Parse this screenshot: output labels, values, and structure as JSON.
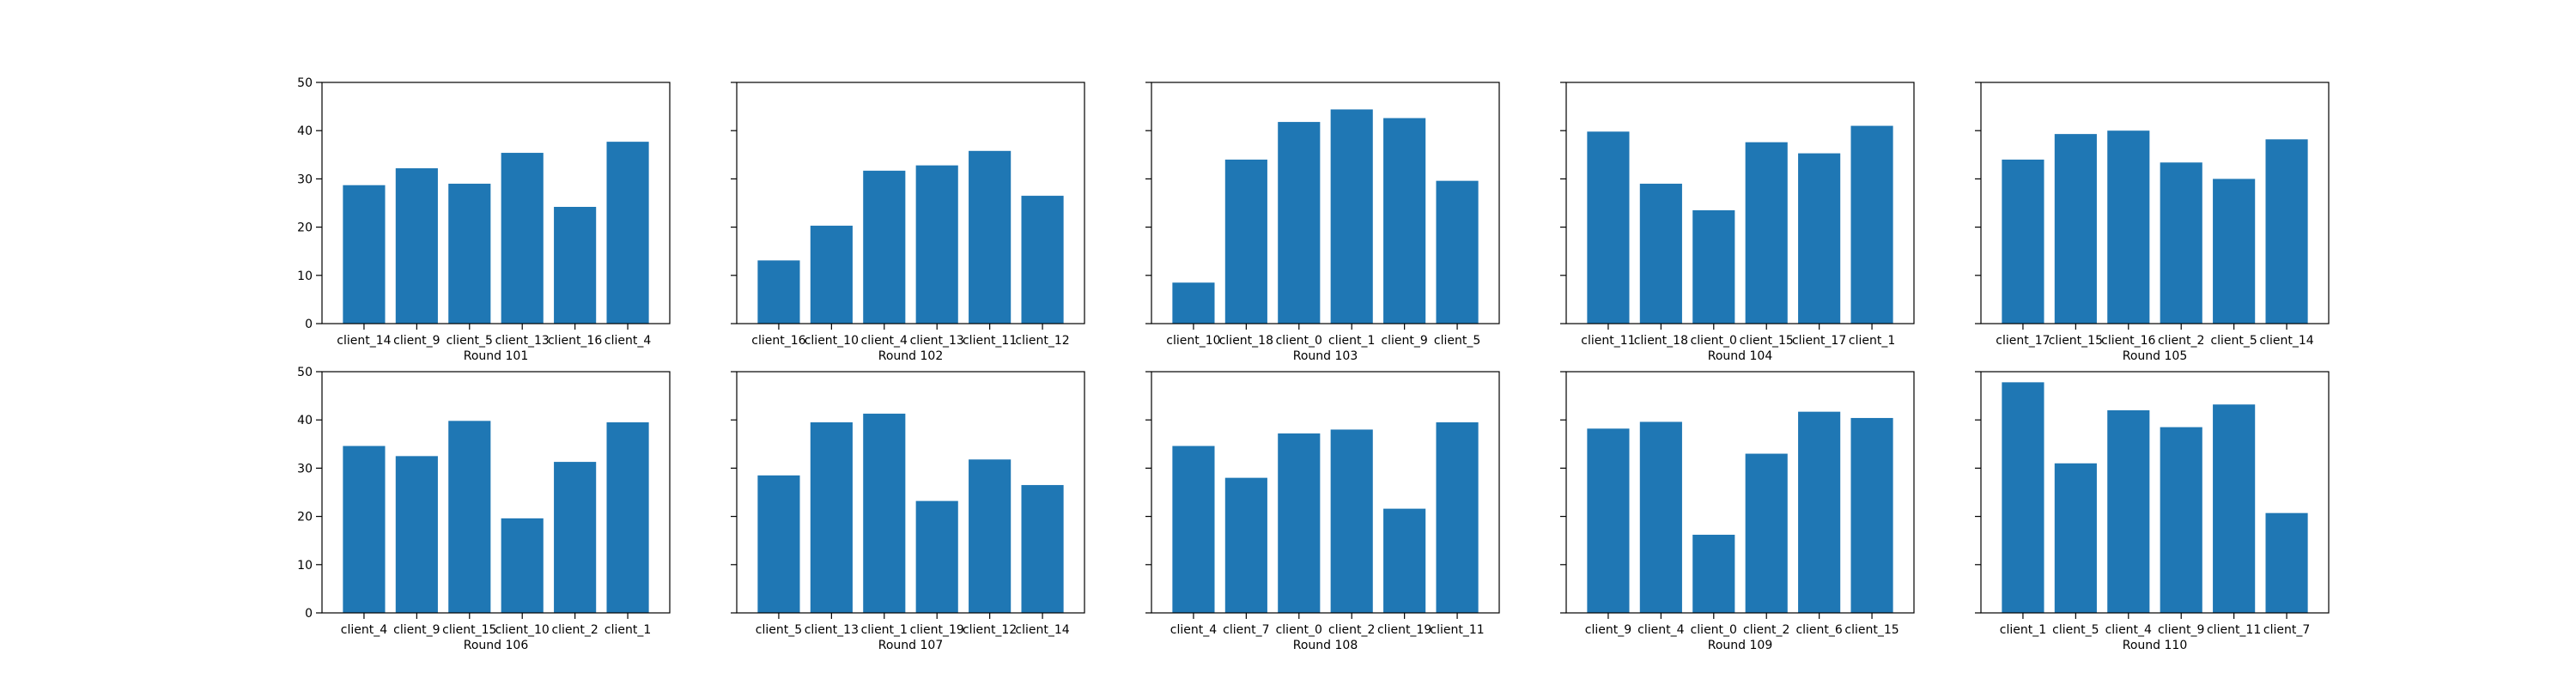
{
  "colors": {
    "bar": "#1f77b4",
    "axis": "#000000",
    "background": "#ffffff"
  },
  "chart_data": [
    {
      "type": "bar",
      "xlabel": "Round 101",
      "categories": [
        "client_14",
        "client_9",
        "client_5",
        "client_13",
        "client_16",
        "client_4"
      ],
      "values": [
        28.7,
        32.2,
        29.0,
        35.4,
        24.2,
        37.7
      ],
      "ylim": [
        0,
        50
      ],
      "yticks": [
        0,
        10,
        20,
        30,
        40,
        50
      ],
      "grid": false
    },
    {
      "type": "bar",
      "xlabel": "Round 102",
      "categories": [
        "client_16",
        "client_10",
        "client_4",
        "client_13",
        "client_11",
        "client_12"
      ],
      "values": [
        13.1,
        20.3,
        31.7,
        32.8,
        35.8,
        26.5
      ],
      "ylim": [
        0,
        50
      ],
      "yticks": [
        0,
        10,
        20,
        30,
        40,
        50
      ],
      "grid": false
    },
    {
      "type": "bar",
      "xlabel": "Round 103",
      "categories": [
        "client_10",
        "client_18",
        "client_0",
        "client_1",
        "client_9",
        "client_5"
      ],
      "values": [
        8.5,
        34.0,
        41.8,
        44.4,
        42.6,
        29.6
      ],
      "ylim": [
        0,
        50
      ],
      "yticks": [
        0,
        10,
        20,
        30,
        40,
        50
      ],
      "grid": false
    },
    {
      "type": "bar",
      "xlabel": "Round 104",
      "categories": [
        "client_11",
        "client_18",
        "client_0",
        "client_15",
        "client_17",
        "client_1"
      ],
      "values": [
        39.8,
        29.0,
        23.5,
        37.6,
        35.3,
        41.0
      ],
      "ylim": [
        0,
        50
      ],
      "yticks": [
        0,
        10,
        20,
        30,
        40,
        50
      ],
      "grid": false
    },
    {
      "type": "bar",
      "xlabel": "Round 105",
      "categories": [
        "client_17",
        "client_15",
        "client_16",
        "client_2",
        "client_5",
        "client_14"
      ],
      "values": [
        34.0,
        39.3,
        40.0,
        33.4,
        30.0,
        38.2
      ],
      "ylim": [
        0,
        50
      ],
      "yticks": [
        0,
        10,
        20,
        30,
        40,
        50
      ],
      "grid": false
    },
    {
      "type": "bar",
      "xlabel": "Round 106",
      "categories": [
        "client_4",
        "client_9",
        "client_15",
        "client_10",
        "client_2",
        "client_1"
      ],
      "values": [
        34.6,
        32.5,
        39.8,
        19.6,
        31.3,
        39.5
      ],
      "ylim": [
        0,
        50
      ],
      "yticks": [
        0,
        10,
        20,
        30,
        40,
        50
      ],
      "grid": false
    },
    {
      "type": "bar",
      "xlabel": "Round 107",
      "categories": [
        "client_5",
        "client_13",
        "client_1",
        "client_19",
        "client_12",
        "client_14"
      ],
      "values": [
        28.5,
        39.5,
        41.3,
        23.2,
        31.8,
        26.5
      ],
      "ylim": [
        0,
        50
      ],
      "yticks": [
        0,
        10,
        20,
        30,
        40,
        50
      ],
      "grid": false
    },
    {
      "type": "bar",
      "xlabel": "Round 108",
      "categories": [
        "client_4",
        "client_7",
        "client_0",
        "client_2",
        "client_19",
        "client_11"
      ],
      "values": [
        34.6,
        28.0,
        37.2,
        38.0,
        21.6,
        39.5
      ],
      "ylim": [
        0,
        50
      ],
      "yticks": [
        0,
        10,
        20,
        30,
        40,
        50
      ],
      "grid": false
    },
    {
      "type": "bar",
      "xlabel": "Round 109",
      "categories": [
        "client_9",
        "client_4",
        "client_0",
        "client_2",
        "client_6",
        "client_15"
      ],
      "values": [
        38.2,
        39.6,
        16.2,
        33.0,
        41.7,
        40.4
      ],
      "ylim": [
        0,
        50
      ],
      "yticks": [
        0,
        10,
        20,
        30,
        40,
        50
      ],
      "grid": false
    },
    {
      "type": "bar",
      "xlabel": "Round 110",
      "categories": [
        "client_1",
        "client_5",
        "client_4",
        "client_9",
        "client_11",
        "client_7"
      ],
      "values": [
        47.8,
        31.0,
        42.0,
        38.5,
        43.2,
        20.7
      ],
      "ylim": [
        0,
        50
      ],
      "yticks": [
        0,
        10,
        20,
        30,
        40,
        50
      ],
      "grid": false
    }
  ]
}
